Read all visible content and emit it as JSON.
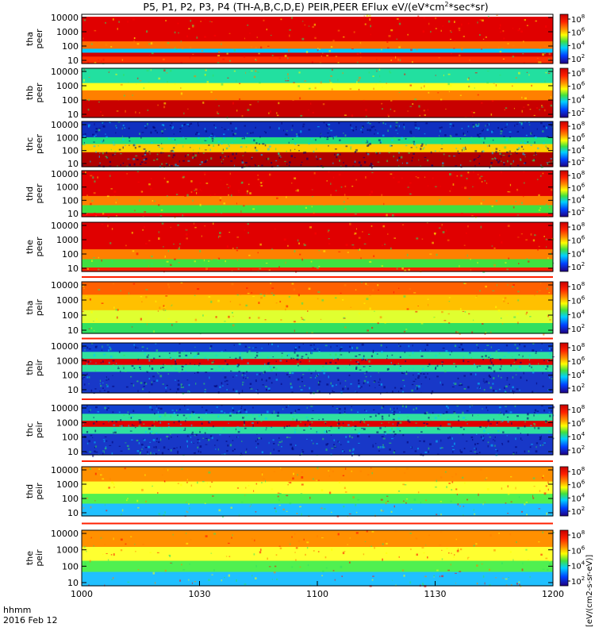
{
  "chart_data": {
    "type": "heatmap",
    "title": "P5, P1, P2, P3, P4 (TH-A,B,C,D,E) PEIR,PEER EFlux eV/(eV*cm",
    "title_sup": "2",
    "title_tail": "*sec*sr)",
    "x_ticks": [
      "1000",
      "1030",
      "1100",
      "1130",
      "1200"
    ],
    "x_range": [
      "1000",
      "1200"
    ],
    "x_corner_label": "hhmm",
    "x_date_label": "2016 Feb 12",
    "y_scale": "log",
    "y_ticks": [
      "10000",
      "1000",
      "100",
      "10"
    ],
    "colorbar_base": "10",
    "colorbar_exponents": [
      "8",
      "6",
      "4",
      "2"
    ],
    "colorbar_scale": "log",
    "colorbar_label": "[eV/(cm2-s-sr-eV)]",
    "colors": {
      "high": "#d50000",
      "mid_high": "#ff8c00",
      "mid": "#ffff00",
      "mid_low": "#33dd55",
      "low": "#00c8ff",
      "lowest": "#0000cc",
      "floor": "#000000",
      "separator": "#ff2000"
    },
    "panels": [
      {
        "name": "tha_peer",
        "probe": "tha",
        "species": "peer",
        "label_top": "tha",
        "label_bottom": "peer",
        "profile": "bg_fade_top",
        "bands": [
          {
            "y": 0.05,
            "h": 0.5,
            "color": "#e00000"
          },
          {
            "y": 0.55,
            "h": 0.15,
            "color": "#ff7000"
          },
          {
            "y": 0.7,
            "h": 0.08,
            "color": "#00c8ff"
          },
          {
            "y": 0.78,
            "h": 0.08,
            "color": "#d00000"
          },
          {
            "y": 0.86,
            "h": 0.14,
            "color": "#ff3000"
          }
        ]
      },
      {
        "name": "thb_peer",
        "probe": "thb",
        "species": "peer",
        "label_top": "thb",
        "label_bottom": "peer",
        "profile": "steady",
        "bands": [
          {
            "y": 0.0,
            "h": 0.3,
            "color": "#22e0a0"
          },
          {
            "y": 0.3,
            "h": 0.15,
            "color": "#ffff20"
          },
          {
            "y": 0.45,
            "h": 0.2,
            "color": "#ff8000"
          },
          {
            "y": 0.65,
            "h": 0.35,
            "color": "#c80000"
          }
        ]
      },
      {
        "name": "thc_peer",
        "probe": "thc",
        "species": "peer",
        "label_top": "thc",
        "label_bottom": "peer",
        "profile": "noisy_top",
        "bands": [
          {
            "y": 0.0,
            "h": 0.35,
            "color": "#1030c0"
          },
          {
            "y": 0.35,
            "h": 0.15,
            "color": "#20e080"
          },
          {
            "y": 0.5,
            "h": 0.18,
            "color": "#ffd000"
          },
          {
            "y": 0.68,
            "h": 0.32,
            "color": "#b00000"
          }
        ]
      },
      {
        "name": "thd_peer",
        "probe": "thd",
        "species": "peer",
        "label_top": "thd",
        "label_bottom": "peer",
        "profile": "broad",
        "bands": [
          {
            "y": 0.0,
            "h": 0.55,
            "color": "#e00000"
          },
          {
            "y": 0.55,
            "h": 0.2,
            "color": "#ff8000"
          },
          {
            "y": 0.75,
            "h": 0.17,
            "color": "#40e040"
          },
          {
            "y": 0.92,
            "h": 0.08,
            "color": "#ff0000"
          }
        ]
      },
      {
        "name": "the_peer",
        "probe": "the",
        "species": "peer",
        "label_top": "the",
        "label_bottom": "peer",
        "profile": "broad",
        "bands": [
          {
            "y": 0.0,
            "h": 0.55,
            "color": "#e00000"
          },
          {
            "y": 0.55,
            "h": 0.2,
            "color": "#ff8000"
          },
          {
            "y": 0.75,
            "h": 0.17,
            "color": "#40e040"
          },
          {
            "y": 0.92,
            "h": 0.08,
            "color": "#ff2000"
          }
        ]
      },
      {
        "name": "tha_peir",
        "probe": "tha",
        "species": "peir",
        "label_top": "tha",
        "label_bottom": "peir",
        "profile": "ion",
        "bands": [
          {
            "y": 0.0,
            "h": 0.25,
            "color": "#ff6000"
          },
          {
            "y": 0.25,
            "h": 0.3,
            "color": "#ffc000"
          },
          {
            "y": 0.55,
            "h": 0.25,
            "color": "#e0ff30"
          },
          {
            "y": 0.8,
            "h": 0.2,
            "color": "#30e060"
          }
        ]
      },
      {
        "name": "thb_peir",
        "probe": "thb",
        "species": "peir",
        "label_top": "thb",
        "label_bottom": "peir",
        "profile": "noisy_ion",
        "bands": [
          {
            "y": 0.0,
            "h": 0.18,
            "color": "#1040d0"
          },
          {
            "y": 0.18,
            "h": 0.14,
            "color": "#30e0a0"
          },
          {
            "y": 0.32,
            "h": 0.12,
            "color": "#e00000"
          },
          {
            "y": 0.44,
            "h": 0.14,
            "color": "#30e0a0"
          },
          {
            "y": 0.58,
            "h": 0.42,
            "color": "#1838c8"
          }
        ]
      },
      {
        "name": "thc_peir",
        "probe": "thc",
        "species": "peir",
        "label_top": "thc",
        "label_bottom": "peir",
        "profile": "noisy_ion",
        "bands": [
          {
            "y": 0.0,
            "h": 0.18,
            "color": "#1040d0"
          },
          {
            "y": 0.18,
            "h": 0.14,
            "color": "#30e0a0"
          },
          {
            "y": 0.32,
            "h": 0.12,
            "color": "#e00000"
          },
          {
            "y": 0.44,
            "h": 0.14,
            "color": "#30e0a0"
          },
          {
            "y": 0.58,
            "h": 0.42,
            "color": "#1838c8"
          }
        ]
      },
      {
        "name": "thd_peir",
        "probe": "thd",
        "species": "peir",
        "label_top": "thd",
        "label_bottom": "peir",
        "profile": "ion",
        "bands": [
          {
            "y": 0.0,
            "h": 0.3,
            "color": "#ff9000"
          },
          {
            "y": 0.3,
            "h": 0.25,
            "color": "#ffff30"
          },
          {
            "y": 0.55,
            "h": 0.2,
            "color": "#50f050"
          },
          {
            "y": 0.75,
            "h": 0.25,
            "color": "#20c0ff"
          }
        ]
      },
      {
        "name": "the_peir",
        "probe": "the",
        "species": "peir",
        "label_top": "the",
        "label_bottom": "peir",
        "profile": "ion",
        "bands": [
          {
            "y": 0.0,
            "h": 0.3,
            "color": "#ff9000"
          },
          {
            "y": 0.3,
            "h": 0.25,
            "color": "#ffff30"
          },
          {
            "y": 0.55,
            "h": 0.2,
            "color": "#50f050"
          },
          {
            "y": 0.75,
            "h": 0.25,
            "color": "#20c0ff"
          }
        ]
      }
    ]
  }
}
